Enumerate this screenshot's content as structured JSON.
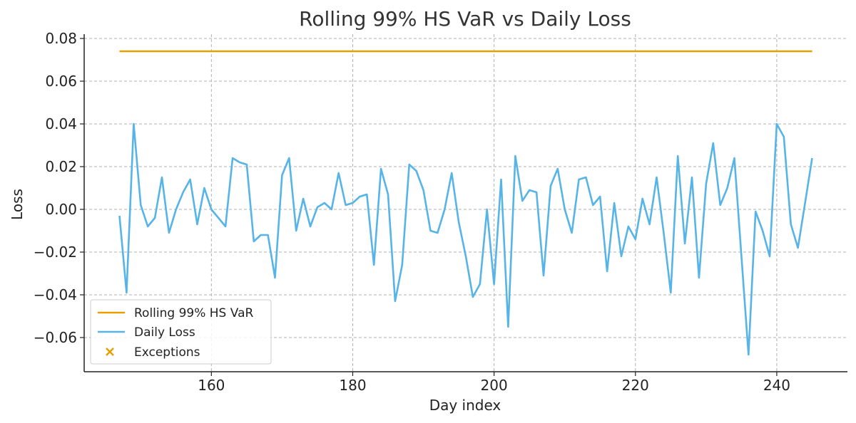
{
  "chart_data": {
    "type": "line",
    "title": "Rolling 99% HS VaR vs Daily Loss",
    "xlabel": "Day index",
    "ylabel": "Loss",
    "xlim": [
      142,
      250
    ],
    "ylim": [
      -0.076,
      0.082
    ],
    "xticks": [
      160,
      180,
      200,
      220,
      240
    ],
    "yticks": [
      -0.06,
      -0.04,
      -0.02,
      0.0,
      0.02,
      0.04,
      0.06,
      0.08
    ],
    "ytick_labels": [
      "−0.06",
      "−0.04",
      "−0.02",
      "0.00",
      "0.02",
      "0.04",
      "0.06",
      "0.08"
    ],
    "grid": true,
    "legend_position": "bottom-left",
    "series": [
      {
        "name": "Rolling 99% HS VaR",
        "color": "#E69F00",
        "x": [
          147,
          245
        ],
        "values": [
          0.074,
          0.074
        ]
      },
      {
        "name": "Daily Loss",
        "color": "#56B4E9",
        "x": [
          147,
          148,
          149,
          150,
          151,
          152,
          153,
          154,
          155,
          156,
          157,
          158,
          159,
          160,
          161,
          162,
          163,
          164,
          165,
          166,
          167,
          168,
          169,
          170,
          171,
          172,
          173,
          174,
          175,
          176,
          177,
          178,
          179,
          180,
          181,
          182,
          183,
          184,
          185,
          186,
          187,
          188,
          189,
          190,
          191,
          192,
          193,
          194,
          195,
          196,
          197,
          198,
          199,
          200,
          201,
          202,
          203,
          204,
          205,
          206,
          207,
          208,
          209,
          210,
          211,
          212,
          213,
          214,
          215,
          216,
          217,
          218,
          219,
          220,
          221,
          222,
          223,
          224,
          225,
          226,
          227,
          228,
          229,
          230,
          231,
          232,
          233,
          234,
          235,
          236,
          237,
          238,
          239,
          240,
          241,
          242,
          243,
          244,
          245
        ],
        "values": [
          -0.003,
          -0.039,
          0.04,
          0.002,
          -0.008,
          -0.004,
          0.015,
          -0.011,
          0.0,
          0.008,
          0.014,
          -0.007,
          0.01,
          0.0,
          -0.004,
          -0.008,
          0.024,
          0.022,
          0.021,
          -0.015,
          -0.012,
          -0.012,
          -0.032,
          0.016,
          0.024,
          -0.01,
          0.005,
          -0.008,
          0.001,
          0.003,
          0.0,
          0.017,
          0.002,
          0.003,
          0.006,
          0.007,
          -0.026,
          0.019,
          0.007,
          -0.043,
          -0.026,
          0.021,
          0.018,
          0.009,
          -0.01,
          -0.011,
          0.0,
          0.017,
          -0.006,
          -0.022,
          -0.041,
          -0.035,
          0.0,
          -0.035,
          0.014,
          -0.055,
          0.025,
          0.004,
          0.009,
          0.008,
          -0.031,
          0.011,
          0.019,
          0.0,
          -0.011,
          0.014,
          0.015,
          0.002,
          0.006,
          -0.029,
          0.003,
          -0.022,
          -0.008,
          -0.014,
          0.005,
          -0.007,
          0.015,
          -0.011,
          -0.039,
          0.025,
          -0.016,
          0.015,
          -0.032,
          0.012,
          0.031,
          0.002,
          0.01,
          0.024,
          -0.022,
          -0.068,
          -0.001,
          -0.01,
          -0.022,
          0.04,
          0.034,
          -0.007,
          -0.018,
          0.003,
          0.024
        ]
      },
      {
        "name": "Exceptions",
        "color": "#E69F00",
        "marker": "x",
        "x": [],
        "values": []
      }
    ]
  }
}
